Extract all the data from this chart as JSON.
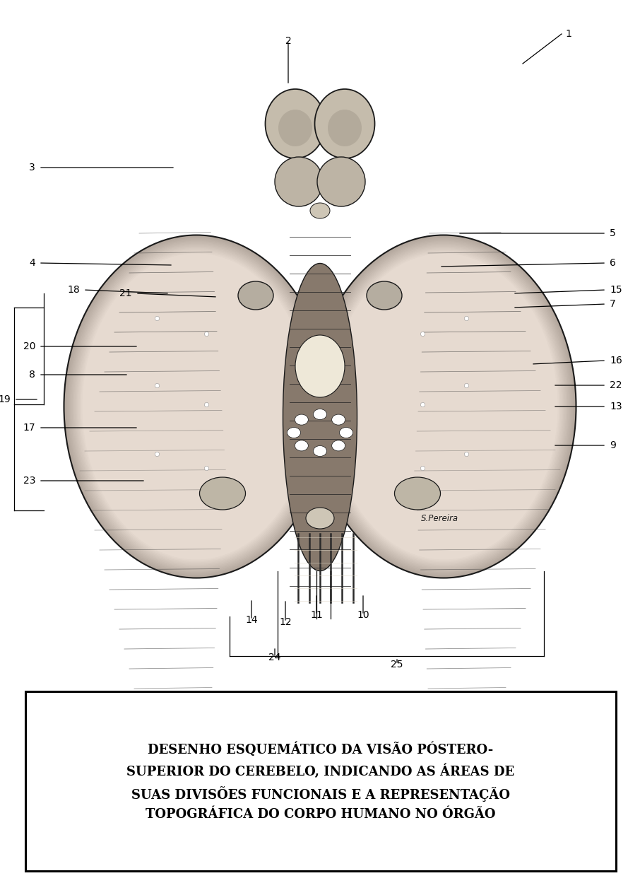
{
  "bg_color": "#ffffff",
  "caption_text": "DESENHO ESQUEMÁTICO DA VISÃO PÓSTERO-\nSUPERIOR DO CEREBELO, INDICANDO AS ÁREAS DE\nSUAS DIVISÕES FUNCIONAIS E A REPRESENTAÇÃO\nTOPOGRÁFICA DO CORPO HUMANO NO ÓRGÃO",
  "label_fontsize": 10,
  "caption_fontsize": 13,
  "signature": "S.Pereira",
  "label_entries": [
    [
      "2",
      408,
      58,
      408,
      58,
      408,
      120
    ],
    [
      "3",
      55,
      237,
      55,
      237,
      248,
      237
    ],
    [
      "4",
      55,
      372,
      55,
      372,
      245,
      375
    ],
    [
      "5",
      858,
      330,
      858,
      330,
      648,
      330
    ],
    [
      "6",
      858,
      372,
      858,
      372,
      622,
      377
    ],
    [
      "7",
      858,
      430,
      858,
      430,
      726,
      435
    ],
    [
      "8",
      55,
      530,
      55,
      530,
      182,
      530
    ],
    [
      "9",
      858,
      630,
      858,
      630,
      783,
      630
    ],
    [
      "10",
      514,
      870,
      514,
      870,
      514,
      840
    ],
    [
      "11",
      448,
      870,
      448,
      870,
      448,
      840
    ],
    [
      "12",
      404,
      880,
      404,
      880,
      404,
      848
    ],
    [
      "13",
      858,
      575,
      858,
      575,
      783,
      575
    ],
    [
      "14",
      356,
      877,
      356,
      877,
      356,
      847
    ],
    [
      "15",
      858,
      410,
      858,
      410,
      726,
      415
    ],
    [
      "16",
      858,
      510,
      858,
      510,
      752,
      515
    ],
    [
      "17",
      55,
      605,
      55,
      605,
      196,
      605
    ],
    [
      "18",
      118,
      410,
      118,
      410,
      240,
      415
    ],
    [
      "19",
      20,
      565,
      20,
      565,
      55,
      565
    ],
    [
      "20",
      55,
      490,
      55,
      490,
      196,
      490
    ],
    [
      "21",
      192,
      415,
      192,
      415,
      308,
      420
    ],
    [
      "22",
      858,
      545,
      858,
      545,
      783,
      545
    ],
    [
      "23",
      55,
      680,
      55,
      680,
      206,
      680
    ],
    [
      "24",
      389,
      930,
      389,
      930,
      389,
      915
    ],
    [
      "25",
      562,
      940,
      562,
      940,
      562,
      930
    ]
  ]
}
